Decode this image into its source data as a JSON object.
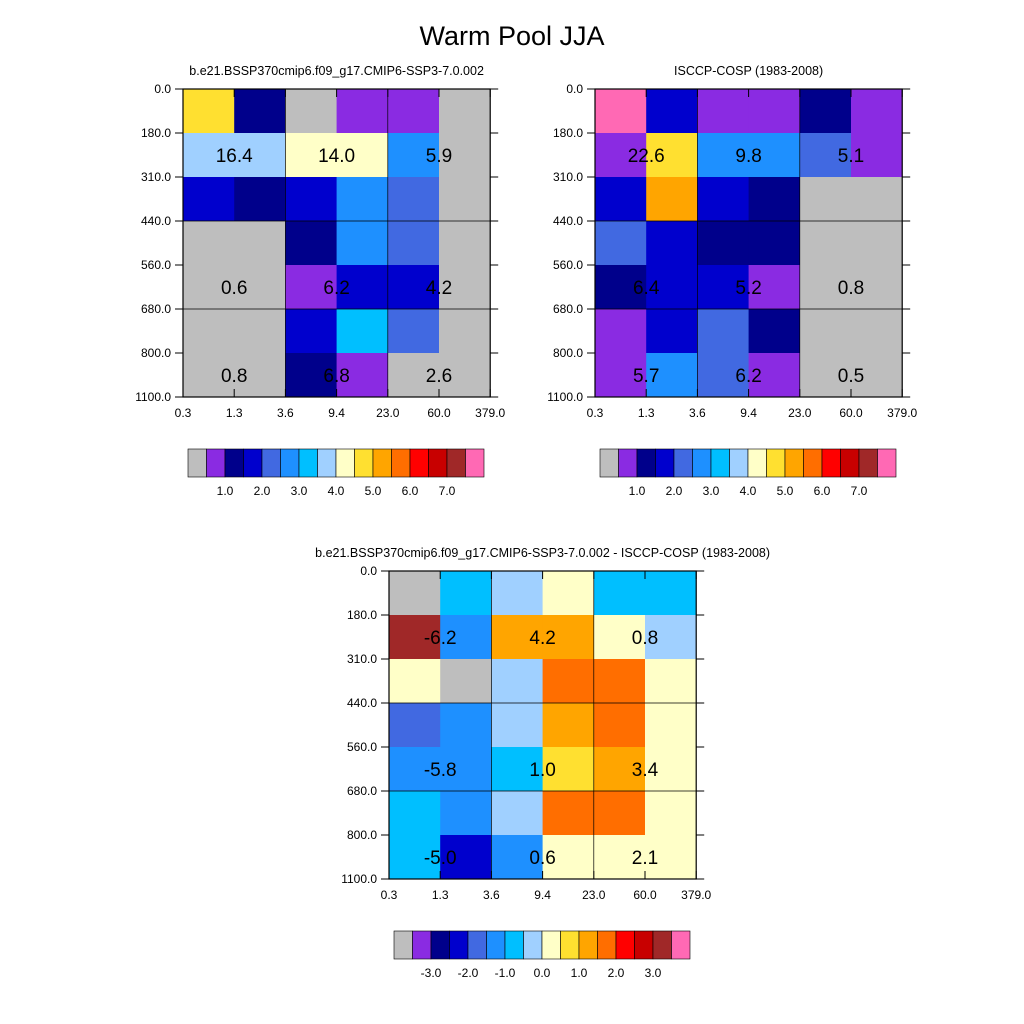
{
  "title": "Warm Pool JJA",
  "palette": [
    "#bebebe",
    "#8a2be2",
    "#00008b",
    "#0000cd",
    "#4169e1",
    "#1e90ff",
    "#00bfff",
    "#a0d0ff",
    "#ffffc8",
    "#ffe030",
    "#ffa500",
    "#ff6e00",
    "#ff0000",
    "#c80000",
    "#a02828",
    "#ff69b4"
  ],
  "chart_data": [
    {
      "type": "heatmap",
      "title": "b.e21.BSSP370cmip6.f09_g17.CMIP6-SSP3-7.0.002",
      "x_ticks": [
        "0.3",
        "1.3",
        "3.6",
        "9.4",
        "23.0",
        "60.0",
        "379.0"
      ],
      "y_ticks": [
        "0.0",
        "180.0",
        "310.0",
        "440.0",
        "560.0",
        "680.0",
        "800.0",
        "1100.0"
      ],
      "cells": [
        [
          9,
          2,
          0,
          1,
          1,
          0
        ],
        [
          7,
          7,
          8,
          8,
          5,
          0
        ],
        [
          3,
          2,
          3,
          5,
          4,
          0
        ],
        [
          0,
          0,
          2,
          5,
          4,
          0
        ],
        [
          0,
          0,
          1,
          3,
          3,
          0
        ],
        [
          0,
          0,
          3,
          6,
          4,
          0
        ],
        [
          0,
          0,
          2,
          1,
          0,
          0
        ]
      ],
      "labels": [
        {
          "text": "16.4",
          "row": 1,
          "col": 1
        },
        {
          "text": "14.0",
          "row": 1,
          "col": 3
        },
        {
          "text": "5.9",
          "row": 1,
          "col": 5
        },
        {
          "text": "0.6",
          "row": 4,
          "col": 1
        },
        {
          "text": "6.2",
          "row": 4,
          "col": 3
        },
        {
          "text": "4.2",
          "row": 4,
          "col": 5
        },
        {
          "text": "0.8",
          "row": 6,
          "col": 1
        },
        {
          "text": "6.8",
          "row": 6,
          "col": 3
        },
        {
          "text": "2.6",
          "row": 6,
          "col": 5
        }
      ],
      "colorbar_labels": [
        "1.0",
        "2.0",
        "3.0",
        "4.0",
        "5.0",
        "6.0",
        "7.0"
      ]
    },
    {
      "type": "heatmap",
      "title": "ISCCP-COSP (1983-2008)",
      "x_ticks": [
        "0.3",
        "1.3",
        "3.6",
        "9.4",
        "23.0",
        "60.0",
        "379.0"
      ],
      "y_ticks": [
        "0.0",
        "180.0",
        "310.0",
        "440.0",
        "560.0",
        "680.0",
        "800.0",
        "1100.0"
      ],
      "cells": [
        [
          15,
          3,
          1,
          1,
          2,
          1
        ],
        [
          1,
          9,
          5,
          5,
          4,
          1
        ],
        [
          3,
          10,
          3,
          2,
          0,
          0
        ],
        [
          4,
          3,
          2,
          2,
          0,
          0
        ],
        [
          2,
          3,
          3,
          1,
          0,
          0
        ],
        [
          1,
          3,
          4,
          2,
          0,
          0
        ],
        [
          1,
          5,
          4,
          1,
          0,
          0
        ]
      ],
      "labels": [
        {
          "text": "22.6",
          "row": 1,
          "col": 1
        },
        {
          "text": "9.8",
          "row": 1,
          "col": 3
        },
        {
          "text": "5.1",
          "row": 1,
          "col": 5
        },
        {
          "text": "6.4",
          "row": 4,
          "col": 1
        },
        {
          "text": "5.2",
          "row": 4,
          "col": 3
        },
        {
          "text": "0.8",
          "row": 4,
          "col": 5
        },
        {
          "text": "5.7",
          "row": 6,
          "col": 1
        },
        {
          "text": "6.2",
          "row": 6,
          "col": 3
        },
        {
          "text": "0.5",
          "row": 6,
          "col": 5
        }
      ],
      "colorbar_labels": [
        "1.0",
        "2.0",
        "3.0",
        "4.0",
        "5.0",
        "6.0",
        "7.0"
      ]
    },
    {
      "type": "heatmap",
      "title": "b.e21.BSSP370cmip6.f09_g17.CMIP6-SSP3-7.0.002 - ISCCP-COSP (1983-2008)",
      "x_ticks": [
        "0.3",
        "1.3",
        "3.6",
        "9.4",
        "23.0",
        "60.0",
        "379.0"
      ],
      "y_ticks": [
        "0.0",
        "180.0",
        "310.0",
        "440.0",
        "560.0",
        "680.0",
        "800.0",
        "1100.0"
      ],
      "cells": [
        [
          0,
          6,
          7,
          8,
          6,
          6
        ],
        [
          14,
          5,
          10,
          10,
          8,
          7
        ],
        [
          8,
          0,
          7,
          11,
          11,
          8
        ],
        [
          4,
          5,
          7,
          10,
          11,
          8
        ],
        [
          5,
          5,
          6,
          9,
          10,
          8
        ],
        [
          6,
          5,
          7,
          11,
          11,
          8
        ],
        [
          6,
          3,
          5,
          8,
          8,
          8
        ]
      ],
      "labels": [
        {
          "text": "-6.2",
          "row": 1,
          "col": 1
        },
        {
          "text": "4.2",
          "row": 1,
          "col": 3
        },
        {
          "text": "0.8",
          "row": 1,
          "col": 5
        },
        {
          "text": "-5.8",
          "row": 4,
          "col": 1
        },
        {
          "text": "1.0",
          "row": 4,
          "col": 3
        },
        {
          "text": "3.4",
          "row": 4,
          "col": 5
        },
        {
          "text": "-5.0",
          "row": 6,
          "col": 1
        },
        {
          "text": "0.6",
          "row": 6,
          "col": 3
        },
        {
          "text": "2.1",
          "row": 6,
          "col": 5
        }
      ],
      "colorbar_labels": [
        "-3.0",
        "-2.0",
        "-1.0",
        "0.0",
        "1.0",
        "2.0",
        "3.0"
      ]
    }
  ]
}
